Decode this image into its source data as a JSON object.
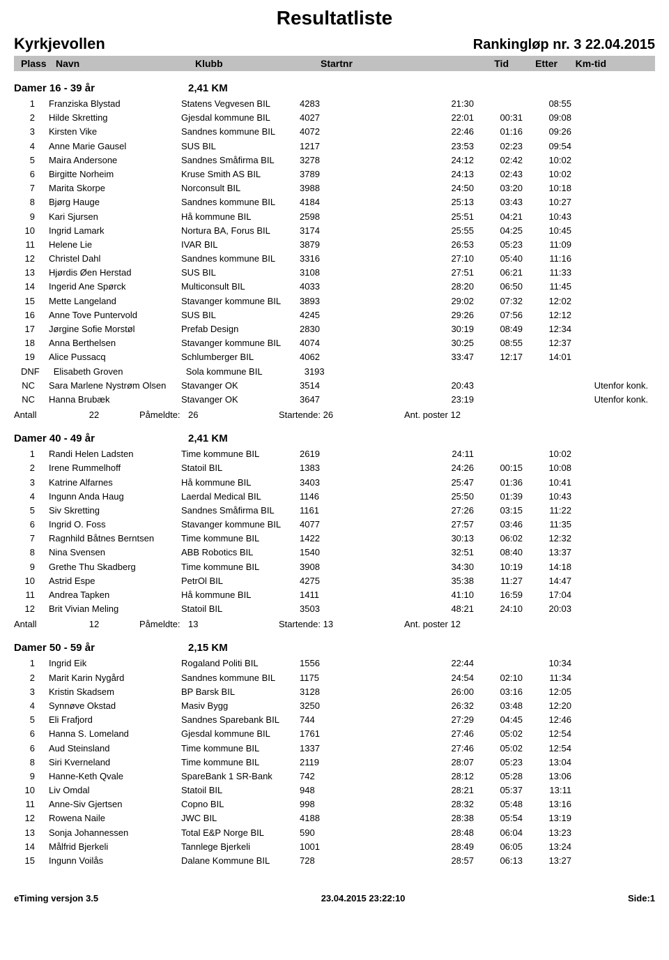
{
  "doc_title": "Resultatliste",
  "venue": "Kyrkjevollen",
  "race": "Rankingløp nr. 3 22.04.2015",
  "headers": {
    "plass": "Plass",
    "navn": "Navn",
    "klubb": "Klubb",
    "startnr": "Startnr",
    "tid": "Tid",
    "etter": "Etter",
    "kmtid": "Km-tid"
  },
  "categories": [
    {
      "name": "Damer 16 - 39 år",
      "distance": "2,41 KM",
      "rows": [
        {
          "plass": "1",
          "navn": "Franziska Blystad",
          "klubb": "Statens Vegvesen BIL",
          "startnr": "4283",
          "tid": "21:30",
          "etter": "",
          "kmtid": "08:55",
          "note": ""
        },
        {
          "plass": "2",
          "navn": "Hilde Skretting",
          "klubb": "Gjesdal kommune BIL",
          "startnr": "4027",
          "tid": "22:01",
          "etter": "00:31",
          "kmtid": "09:08",
          "note": ""
        },
        {
          "plass": "3",
          "navn": "Kirsten Vike",
          "klubb": "Sandnes kommune BIL",
          "startnr": "4072",
          "tid": "22:46",
          "etter": "01:16",
          "kmtid": "09:26",
          "note": ""
        },
        {
          "plass": "4",
          "navn": "Anne Marie Gausel",
          "klubb": "SUS BIL",
          "startnr": "1217",
          "tid": "23:53",
          "etter": "02:23",
          "kmtid": "09:54",
          "note": ""
        },
        {
          "plass": "5",
          "navn": "Maira Andersone",
          "klubb": "Sandnes Småfirma BIL",
          "startnr": "3278",
          "tid": "24:12",
          "etter": "02:42",
          "kmtid": "10:02",
          "note": ""
        },
        {
          "plass": "6",
          "navn": "Birgitte Norheim",
          "klubb": "Kruse Smith AS BIL",
          "startnr": "3789",
          "tid": "24:13",
          "etter": "02:43",
          "kmtid": "10:02",
          "note": ""
        },
        {
          "plass": "7",
          "navn": "Marita Skorpe",
          "klubb": "Norconsult BIL",
          "startnr": "3988",
          "tid": "24:50",
          "etter": "03:20",
          "kmtid": "10:18",
          "note": ""
        },
        {
          "plass": "8",
          "navn": "Bjørg Hauge",
          "klubb": "Sandnes kommune BIL",
          "startnr": "4184",
          "tid": "25:13",
          "etter": "03:43",
          "kmtid": "10:27",
          "note": ""
        },
        {
          "plass": "9",
          "navn": "Kari Sjursen",
          "klubb": "Hå kommune BIL",
          "startnr": "2598",
          "tid": "25:51",
          "etter": "04:21",
          "kmtid": "10:43",
          "note": ""
        },
        {
          "plass": "10",
          "navn": "Ingrid Lamark",
          "klubb": "Nortura BA, Forus BIL",
          "startnr": "3174",
          "tid": "25:55",
          "etter": "04:25",
          "kmtid": "10:45",
          "note": ""
        },
        {
          "plass": "11",
          "navn": "Helene Lie",
          "klubb": "IVAR BIL",
          "startnr": "3879",
          "tid": "26:53",
          "etter": "05:23",
          "kmtid": "11:09",
          "note": ""
        },
        {
          "plass": "12",
          "navn": "Christel Dahl",
          "klubb": "Sandnes kommune BIL",
          "startnr": "3316",
          "tid": "27:10",
          "etter": "05:40",
          "kmtid": "11:16",
          "note": ""
        },
        {
          "plass": "13",
          "navn": "Hjørdis Øen Herstad",
          "klubb": "SUS BIL",
          "startnr": "3108",
          "tid": "27:51",
          "etter": "06:21",
          "kmtid": "11:33",
          "note": ""
        },
        {
          "plass": "14",
          "navn": "Ingerid Ane Spørck",
          "klubb": "Multiconsult BIL",
          "startnr": "4033",
          "tid": "28:20",
          "etter": "06:50",
          "kmtid": "11:45",
          "note": ""
        },
        {
          "plass": "15",
          "navn": "Mette Langeland",
          "klubb": "Stavanger kommune BIL",
          "startnr": "3893",
          "tid": "29:02",
          "etter": "07:32",
          "kmtid": "12:02",
          "note": ""
        },
        {
          "plass": "16",
          "navn": "Anne Tove Puntervold",
          "klubb": "SUS BIL",
          "startnr": "4245",
          "tid": "29:26",
          "etter": "07:56",
          "kmtid": "12:12",
          "note": ""
        },
        {
          "plass": "17",
          "navn": "Jørgine Sofie Morstøl",
          "klubb": "Prefab Design",
          "startnr": "2830",
          "tid": "30:19",
          "etter": "08:49",
          "kmtid": "12:34",
          "note": ""
        },
        {
          "plass": "18",
          "navn": "Anna Berthelsen",
          "klubb": "Stavanger kommune BIL",
          "startnr": "4074",
          "tid": "30:25",
          "etter": "08:55",
          "kmtid": "12:37",
          "note": ""
        },
        {
          "plass": "19",
          "navn": "Alice Pussacq",
          "klubb": "Schlumberger BIL",
          "startnr": "4062",
          "tid": "33:47",
          "etter": "12:17",
          "kmtid": "14:01",
          "note": ""
        },
        {
          "plass": "DNF",
          "navn": "Elisabeth Groven",
          "klubb": "Sola kommune BIL",
          "startnr": "3193",
          "tid": "",
          "etter": "",
          "kmtid": "",
          "note": ""
        },
        {
          "plass": "NC",
          "navn": "Sara Marlene Nystrøm Olsen",
          "klubb": "Stavanger OK",
          "startnr": "3514",
          "tid": "20:43",
          "etter": "",
          "kmtid": "",
          "note": "Utenfor konk."
        },
        {
          "plass": "NC",
          "navn": "Hanna Brubæk",
          "klubb": "Stavanger OK",
          "startnr": "3647",
          "tid": "23:19",
          "etter": "",
          "kmtid": "",
          "note": "Utenfor konk."
        }
      ],
      "summary": {
        "antall_label": "Antall",
        "antall": "22",
        "pameldte_label": "Påmeldte:",
        "pameldte": "26",
        "startende": "Startende: 26",
        "ant": "Ant. poster 12"
      }
    },
    {
      "name": "Damer 40 - 49 år",
      "distance": "2,41 KM",
      "rows": [
        {
          "plass": "1",
          "navn": "Randi Helen Ladsten",
          "klubb": "Time kommune BIL",
          "startnr": "2619",
          "tid": "24:11",
          "etter": "",
          "kmtid": "10:02",
          "note": ""
        },
        {
          "plass": "2",
          "navn": "Irene Rummelhoff",
          "klubb": "Statoil BIL",
          "startnr": "1383",
          "tid": "24:26",
          "etter": "00:15",
          "kmtid": "10:08",
          "note": ""
        },
        {
          "plass": "3",
          "navn": "Katrine Alfarnes",
          "klubb": "Hå kommune BIL",
          "startnr": "3403",
          "tid": "25:47",
          "etter": "01:36",
          "kmtid": "10:41",
          "note": ""
        },
        {
          "plass": "4",
          "navn": "Ingunn Anda Haug",
          "klubb": "Laerdal Medical BIL",
          "startnr": "1146",
          "tid": "25:50",
          "etter": "01:39",
          "kmtid": "10:43",
          "note": ""
        },
        {
          "plass": "5",
          "navn": "Siv Skretting",
          "klubb": "Sandnes Småfirma BIL",
          "startnr": "1161",
          "tid": "27:26",
          "etter": "03:15",
          "kmtid": "11:22",
          "note": ""
        },
        {
          "plass": "6",
          "navn": "Ingrid O. Foss",
          "klubb": "Stavanger kommune BIL",
          "startnr": "4077",
          "tid": "27:57",
          "etter": "03:46",
          "kmtid": "11:35",
          "note": ""
        },
        {
          "plass": "7",
          "navn": "Ragnhild Båtnes Berntsen",
          "klubb": "Time kommune BIL",
          "startnr": "1422",
          "tid": "30:13",
          "etter": "06:02",
          "kmtid": "12:32",
          "note": ""
        },
        {
          "plass": "8",
          "navn": "Nina Svensen",
          "klubb": "ABB Robotics BIL",
          "startnr": "1540",
          "tid": "32:51",
          "etter": "08:40",
          "kmtid": "13:37",
          "note": ""
        },
        {
          "plass": "9",
          "navn": "Grethe Thu Skadberg",
          "klubb": "Time kommune BIL",
          "startnr": "3908",
          "tid": "34:30",
          "etter": "10:19",
          "kmtid": "14:18",
          "note": ""
        },
        {
          "plass": "10",
          "navn": "Astrid Espe",
          "klubb": "PetrOl BIL",
          "startnr": "4275",
          "tid": "35:38",
          "etter": "11:27",
          "kmtid": "14:47",
          "note": ""
        },
        {
          "plass": "11",
          "navn": "Andrea Tapken",
          "klubb": "Hå kommune BIL",
          "startnr": "1411",
          "tid": "41:10",
          "etter": "16:59",
          "kmtid": "17:04",
          "note": ""
        },
        {
          "plass": "12",
          "navn": "Brit Vivian Meling",
          "klubb": "Statoil BIL",
          "startnr": "3503",
          "tid": "48:21",
          "etter": "24:10",
          "kmtid": "20:03",
          "note": ""
        }
      ],
      "summary": {
        "antall_label": "Antall",
        "antall": "12",
        "pameldte_label": "Påmeldte:",
        "pameldte": "13",
        "startende": "Startende: 13",
        "ant": "Ant. poster 12"
      }
    },
    {
      "name": "Damer 50 - 59 år",
      "distance": "2,15 KM",
      "rows": [
        {
          "plass": "1",
          "navn": "Ingrid Eik",
          "klubb": "Rogaland Politi BIL",
          "startnr": "1556",
          "tid": "22:44",
          "etter": "",
          "kmtid": "10:34",
          "note": ""
        },
        {
          "plass": "2",
          "navn": "Marit Karin Nygård",
          "klubb": "Sandnes kommune BIL",
          "startnr": "1175",
          "tid": "24:54",
          "etter": "02:10",
          "kmtid": "11:34",
          "note": ""
        },
        {
          "plass": "3",
          "navn": "Kristin Skadsem",
          "klubb": "BP Barsk BIL",
          "startnr": "3128",
          "tid": "26:00",
          "etter": "03:16",
          "kmtid": "12:05",
          "note": ""
        },
        {
          "plass": "4",
          "navn": "Synnøve Okstad",
          "klubb": "Masiv Bygg",
          "startnr": "3250",
          "tid": "26:32",
          "etter": "03:48",
          "kmtid": "12:20",
          "note": ""
        },
        {
          "plass": "5",
          "navn": "Eli Frafjord",
          "klubb": "Sandnes Sparebank BIL",
          "startnr": "744",
          "tid": "27:29",
          "etter": "04:45",
          "kmtid": "12:46",
          "note": ""
        },
        {
          "plass": "6",
          "navn": "Hanna S. Lomeland",
          "klubb": "Gjesdal kommune BIL",
          "startnr": "1761",
          "tid": "27:46",
          "etter": "05:02",
          "kmtid": "12:54",
          "note": ""
        },
        {
          "plass": "6",
          "navn": "Aud Steinsland",
          "klubb": "Time kommune BIL",
          "startnr": "1337",
          "tid": "27:46",
          "etter": "05:02",
          "kmtid": "12:54",
          "note": ""
        },
        {
          "plass": "8",
          "navn": "Siri Kverneland",
          "klubb": "Time kommune BIL",
          "startnr": "2119",
          "tid": "28:07",
          "etter": "05:23",
          "kmtid": "13:04",
          "note": ""
        },
        {
          "plass": "9",
          "navn": "Hanne-Keth Qvale",
          "klubb": "SpareBank 1 SR-Bank",
          "startnr": "742",
          "tid": "28:12",
          "etter": "05:28",
          "kmtid": "13:06",
          "note": ""
        },
        {
          "plass": "10",
          "navn": "Liv Omdal",
          "klubb": "Statoil BIL",
          "startnr": "948",
          "tid": "28:21",
          "etter": "05:37",
          "kmtid": "13:11",
          "note": ""
        },
        {
          "plass": "11",
          "navn": "Anne-Siv Gjertsen",
          "klubb": "Copno BIL",
          "startnr": "998",
          "tid": "28:32",
          "etter": "05:48",
          "kmtid": "13:16",
          "note": ""
        },
        {
          "plass": "12",
          "navn": "Rowena Naile",
          "klubb": "JWC BIL",
          "startnr": "4188",
          "tid": "28:38",
          "etter": "05:54",
          "kmtid": "13:19",
          "note": ""
        },
        {
          "plass": "13",
          "navn": "Sonja Johannessen",
          "klubb": "Total E&P Norge BIL",
          "startnr": "590",
          "tid": "28:48",
          "etter": "06:04",
          "kmtid": "13:23",
          "note": ""
        },
        {
          "plass": "14",
          "navn": "Målfrid Bjerkeli",
          "klubb": "Tannlege Bjerkeli",
          "startnr": "1001",
          "tid": "28:49",
          "etter": "06:05",
          "kmtid": "13:24",
          "note": ""
        },
        {
          "plass": "15",
          "navn": "Ingunn Voilås",
          "klubb": "Dalane Kommune BIL",
          "startnr": "728",
          "tid": "28:57",
          "etter": "06:13",
          "kmtid": "13:27",
          "note": ""
        }
      ],
      "summary": null
    }
  ],
  "footer": {
    "left": "eTiming versjon 3.5",
    "center": "23.04.2015 23:22:10",
    "right": "Side:1"
  }
}
